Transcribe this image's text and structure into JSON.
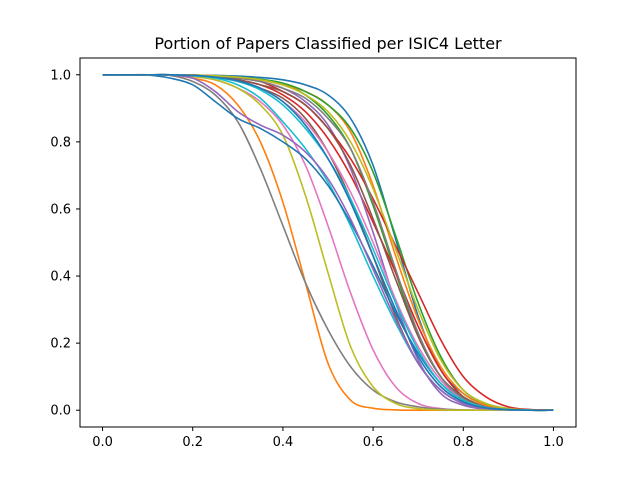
{
  "chart_data": {
    "type": "line",
    "title": "Portion of Papers Classified per ISIC4 Letter",
    "xlabel": "",
    "ylabel": "",
    "xlim": [
      -0.05,
      1.05
    ],
    "ylim": [
      -0.05,
      1.05
    ],
    "xticks": [
      0.0,
      0.2,
      0.4,
      0.6,
      0.8,
      1.0
    ],
    "yticks": [
      0.0,
      0.2,
      0.4,
      0.6,
      0.8,
      1.0
    ],
    "xtick_labels": [
      "0.0",
      "0.2",
      "0.4",
      "0.6",
      "0.8",
      "1.0"
    ],
    "ytick_labels": [
      "0.0",
      "0.2",
      "0.4",
      "0.6",
      "0.8",
      "1.0"
    ],
    "grid": false,
    "legend": "none",
    "x": [
      0.0,
      0.05,
      0.1,
      0.15,
      0.2,
      0.25,
      0.3,
      0.35,
      0.4,
      0.45,
      0.5,
      0.55,
      0.6,
      0.65,
      0.7,
      0.75,
      0.8,
      0.85,
      0.9,
      0.95,
      1.0
    ],
    "series": [
      {
        "color": "#1f77b4",
        "values": [
          1.0,
          1.0,
          1.0,
          1.0,
          0.999,
          0.998,
          0.996,
          0.992,
          0.985,
          0.97,
          0.94,
          0.87,
          0.73,
          0.51,
          0.28,
          0.12,
          0.05,
          0.015,
          0.004,
          0.001,
          0.0
        ]
      },
      {
        "color": "#ff7f0e",
        "values": [
          1.0,
          1.0,
          1.0,
          0.999,
          0.99,
          0.97,
          0.91,
          0.8,
          0.62,
          0.38,
          0.14,
          0.03,
          0.006,
          0.001,
          0.0,
          0.0,
          0.0,
          0.0,
          0.0,
          0.0,
          0.0
        ]
      },
      {
        "color": "#2ca02c",
        "values": [
          1.0,
          1.0,
          1.0,
          1.0,
          0.999,
          0.997,
          0.992,
          0.985,
          0.97,
          0.94,
          0.88,
          0.78,
          0.61,
          0.41,
          0.22,
          0.1,
          0.04,
          0.01,
          0.002,
          0.0,
          0.0
        ]
      },
      {
        "color": "#d62728",
        "values": [
          1.0,
          1.0,
          1.0,
          1.0,
          0.998,
          0.994,
          0.985,
          0.97,
          0.94,
          0.89,
          0.81,
          0.7,
          0.56,
          0.41,
          0.25,
          0.12,
          0.04,
          0.01,
          0.002,
          0.0,
          0.0
        ]
      },
      {
        "color": "#9467bd",
        "values": [
          1.0,
          1.0,
          1.0,
          1.0,
          0.999,
          0.996,
          0.99,
          0.98,
          0.96,
          0.92,
          0.85,
          0.72,
          0.53,
          0.32,
          0.15,
          0.05,
          0.015,
          0.003,
          0.001,
          0.0,
          0.0
        ]
      },
      {
        "color": "#8c564b",
        "values": [
          1.0,
          1.0,
          1.0,
          1.0,
          0.998,
          0.993,
          0.982,
          0.96,
          0.93,
          0.87,
          0.77,
          0.63,
          0.46,
          0.28,
          0.14,
          0.06,
          0.02,
          0.005,
          0.001,
          0.0,
          0.0
        ]
      },
      {
        "color": "#e377c2",
        "values": [
          1.0,
          1.0,
          1.0,
          0.999,
          0.995,
          0.985,
          0.96,
          0.92,
          0.85,
          0.73,
          0.55,
          0.35,
          0.18,
          0.07,
          0.02,
          0.005,
          0.001,
          0.0,
          0.0,
          0.0,
          0.0
        ]
      },
      {
        "color": "#7f7f7f",
        "values": [
          1.0,
          1.0,
          1.0,
          0.998,
          0.98,
          0.94,
          0.86,
          0.72,
          0.55,
          0.38,
          0.24,
          0.13,
          0.06,
          0.025,
          0.01,
          0.003,
          0.001,
          0.0,
          0.0,
          0.0,
          0.0
        ]
      },
      {
        "color": "#bcbd22",
        "values": [
          1.0,
          1.0,
          1.0,
          0.999,
          0.995,
          0.985,
          0.96,
          0.91,
          0.82,
          0.64,
          0.41,
          0.19,
          0.07,
          0.02,
          0.005,
          0.001,
          0.0,
          0.0,
          0.0,
          0.0,
          0.0
        ]
      },
      {
        "color": "#17becf",
        "values": [
          1.0,
          1.0,
          1.0,
          1.0,
          0.997,
          0.99,
          0.97,
          0.93,
          0.86,
          0.78,
          0.68,
          0.55,
          0.4,
          0.26,
          0.14,
          0.06,
          0.02,
          0.005,
          0.001,
          0.0,
          0.0
        ]
      },
      {
        "color": "#1f77b4",
        "values": [
          1.0,
          1.0,
          0.999,
          0.99,
          0.97,
          0.92,
          0.87,
          0.84,
          0.8,
          0.75,
          0.67,
          0.56,
          0.43,
          0.29,
          0.17,
          0.08,
          0.03,
          0.008,
          0.002,
          0.0,
          0.0
        ]
      },
      {
        "color": "#ff7f0e",
        "values": [
          1.0,
          1.0,
          1.0,
          1.0,
          0.999,
          0.997,
          0.992,
          0.985,
          0.97,
          0.95,
          0.91,
          0.83,
          0.67,
          0.46,
          0.27,
          0.13,
          0.05,
          0.015,
          0.004,
          0.001,
          0.0
        ]
      },
      {
        "color": "#2ca02c",
        "values": [
          1.0,
          1.0,
          1.0,
          1.0,
          0.999,
          0.997,
          0.993,
          0.987,
          0.975,
          0.95,
          0.91,
          0.84,
          0.71,
          0.52,
          0.32,
          0.16,
          0.06,
          0.02,
          0.005,
          0.001,
          0.0
        ]
      },
      {
        "color": "#d62728",
        "values": [
          1.0,
          1.0,
          1.0,
          1.0,
          0.999,
          0.996,
          0.99,
          0.98,
          0.95,
          0.91,
          0.84,
          0.75,
          0.63,
          0.49,
          0.35,
          0.21,
          0.1,
          0.04,
          0.01,
          0.002,
          0.0
        ]
      },
      {
        "color": "#9467bd",
        "values": [
          1.0,
          1.0,
          1.0,
          0.999,
          0.99,
          0.95,
          0.89,
          0.85,
          0.82,
          0.77,
          0.69,
          0.57,
          0.42,
          0.27,
          0.14,
          0.06,
          0.02,
          0.005,
          0.001,
          0.0,
          0.0
        ]
      },
      {
        "color": "#8c564b",
        "values": [
          1.0,
          1.0,
          1.0,
          1.0,
          0.998,
          0.994,
          0.985,
          0.97,
          0.95,
          0.91,
          0.84,
          0.73,
          0.57,
          0.39,
          0.22,
          0.1,
          0.04,
          0.01,
          0.002,
          0.0,
          0.0
        ]
      },
      {
        "color": "#e377c2",
        "values": [
          1.0,
          1.0,
          1.0,
          1.0,
          0.998,
          0.993,
          0.98,
          0.96,
          0.92,
          0.86,
          0.77,
          0.65,
          0.5,
          0.33,
          0.19,
          0.09,
          0.03,
          0.008,
          0.002,
          0.0,
          0.0
        ]
      },
      {
        "color": "#7f7f7f",
        "values": [
          1.0,
          1.0,
          1.0,
          1.0,
          0.999,
          0.996,
          0.99,
          0.98,
          0.96,
          0.93,
          0.87,
          0.78,
          0.62,
          0.42,
          0.23,
          0.1,
          0.035,
          0.01,
          0.002,
          0.0,
          0.0
        ]
      },
      {
        "color": "#bcbd22",
        "values": [
          1.0,
          1.0,
          1.0,
          1.0,
          0.999,
          0.997,
          0.993,
          0.985,
          0.97,
          0.94,
          0.89,
          0.8,
          0.66,
          0.48,
          0.3,
          0.15,
          0.06,
          0.02,
          0.005,
          0.001,
          0.0
        ]
      },
      {
        "color": "#17becf",
        "values": [
          1.0,
          1.0,
          1.0,
          1.0,
          0.998,
          0.992,
          0.98,
          0.955,
          0.91,
          0.84,
          0.75,
          0.63,
          0.48,
          0.32,
          0.18,
          0.08,
          0.03,
          0.008,
          0.002,
          0.0,
          0.0
        ]
      },
      {
        "color": "#1f77b4",
        "values": [
          1.0,
          1.0,
          1.0,
          1.0,
          0.998,
          0.993,
          0.982,
          0.96,
          0.92,
          0.85,
          0.75,
          0.62,
          0.46,
          0.3,
          0.16,
          0.07,
          0.025,
          0.007,
          0.002,
          0.0,
          0.0
        ]
      }
    ]
  }
}
